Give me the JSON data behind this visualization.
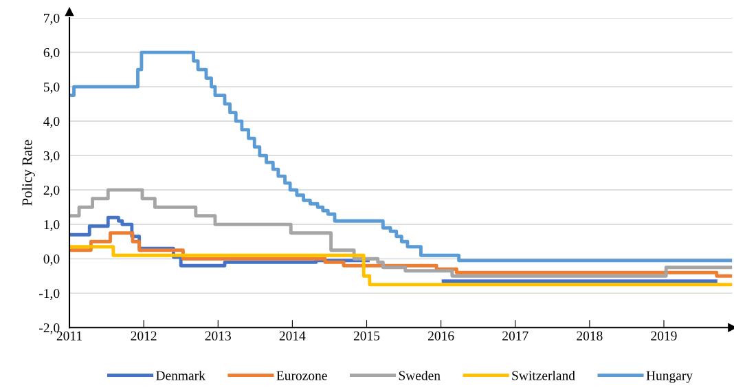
{
  "chart_data": {
    "type": "step",
    "ylabel": "Policy Rate",
    "xlim": [
      2011,
      2019.92
    ],
    "xticks": [
      2011,
      2012,
      2013,
      2014,
      2015,
      2016,
      2017,
      2018,
      2019
    ],
    "ylim": [
      -2,
      7
    ],
    "yticks": [
      {
        "value": -2,
        "label": "-2,0"
      },
      {
        "value": -1,
        "label": "-1,0"
      },
      {
        "value": 0,
        "label": "0,0"
      },
      {
        "value": 1,
        "label": "1,0"
      },
      {
        "value": 2,
        "label": "2,0"
      },
      {
        "value": 3,
        "label": "3,0"
      },
      {
        "value": 4,
        "label": "4,0"
      },
      {
        "value": 5,
        "label": "5,0"
      },
      {
        "value": 6,
        "label": "6,0"
      },
      {
        "value": 7,
        "label": "7,0"
      }
    ],
    "grid": "y",
    "legend": "bottom",
    "marker": "none",
    "line_style": "solid",
    "series": [
      {
        "name": "Denmark",
        "color": "#4472c4",
        "x": [
          2011,
          2011.27,
          2011.52,
          2011.66,
          2011.71,
          2011.84,
          2011.94,
          2012.4,
          2012.5,
          2013.09,
          2014.32,
          2015.04,
          2016.01,
          2019.72
        ],
        "values": [
          0.7,
          0.95,
          1.2,
          1.1,
          1.0,
          0.65,
          0.3,
          0.05,
          -0.2,
          -0.1,
          -0.05,
          null,
          -0.65,
          -0.65
        ]
      },
      {
        "name": "Eurozone",
        "color": "#ed7d31",
        "x": [
          2011,
          2011.29,
          2011.55,
          2011.85,
          2011.94,
          2012.53,
          2014.44,
          2014.69,
          2015.94,
          2016.21,
          2019.71,
          2019.92
        ],
        "values": [
          0.25,
          0.5,
          0.75,
          0.5,
          0.25,
          0.0,
          -0.1,
          -0.2,
          -0.3,
          -0.4,
          -0.5,
          -0.5
        ]
      },
      {
        "name": "Sweden",
        "color": "#a5a5a5",
        "x": [
          2011,
          2011.13,
          2011.31,
          2011.52,
          2011.98,
          2012.15,
          2012.7,
          2012.96,
          2013.98,
          2014.52,
          2014.83,
          2015.15,
          2015.22,
          2015.52,
          2016.15,
          2019.03,
          2019.92
        ],
        "values": [
          1.25,
          1.5,
          1.75,
          2.0,
          1.75,
          1.5,
          1.25,
          1.0,
          0.75,
          0.25,
          0.0,
          -0.1,
          -0.25,
          -0.35,
          -0.5,
          -0.25,
          -0.25
        ]
      },
      {
        "name": "Switzerland",
        "color": "#ffc000",
        "x": [
          2011,
          2011.59,
          2014.96,
          2015.04,
          2019.92
        ],
        "values": [
          0.35,
          0.1,
          -0.5,
          -0.75,
          -0.75
        ]
      },
      {
        "name": "Hungary",
        "color": "#5b9bd5",
        "x": [
          2011,
          2011.06,
          2011.92,
          2011.97,
          2012.67,
          2012.73,
          2012.84,
          2012.91,
          2012.96,
          2013.09,
          2013.16,
          2013.24,
          2013.32,
          2013.41,
          2013.49,
          2013.56,
          2013.65,
          2013.74,
          2013.81,
          2013.9,
          2013.97,
          2014.06,
          2014.15,
          2014.24,
          2014.34,
          2014.41,
          2014.48,
          2014.57,
          2015.22,
          2015.32,
          2015.4,
          2015.47,
          2015.55,
          2015.73,
          2016.24,
          2019.92
        ],
        "values": [
          4.75,
          5.0,
          5.5,
          6.0,
          5.75,
          5.5,
          5.25,
          5.0,
          4.75,
          4.5,
          4.25,
          4.0,
          3.75,
          3.5,
          3.25,
          3.0,
          2.8,
          2.6,
          2.4,
          2.2,
          2.0,
          1.85,
          1.7,
          1.6,
          1.5,
          1.4,
          1.3,
          1.1,
          0.9,
          0.8,
          0.65,
          0.5,
          0.35,
          0.1,
          -0.05,
          -0.05
        ]
      }
    ]
  }
}
